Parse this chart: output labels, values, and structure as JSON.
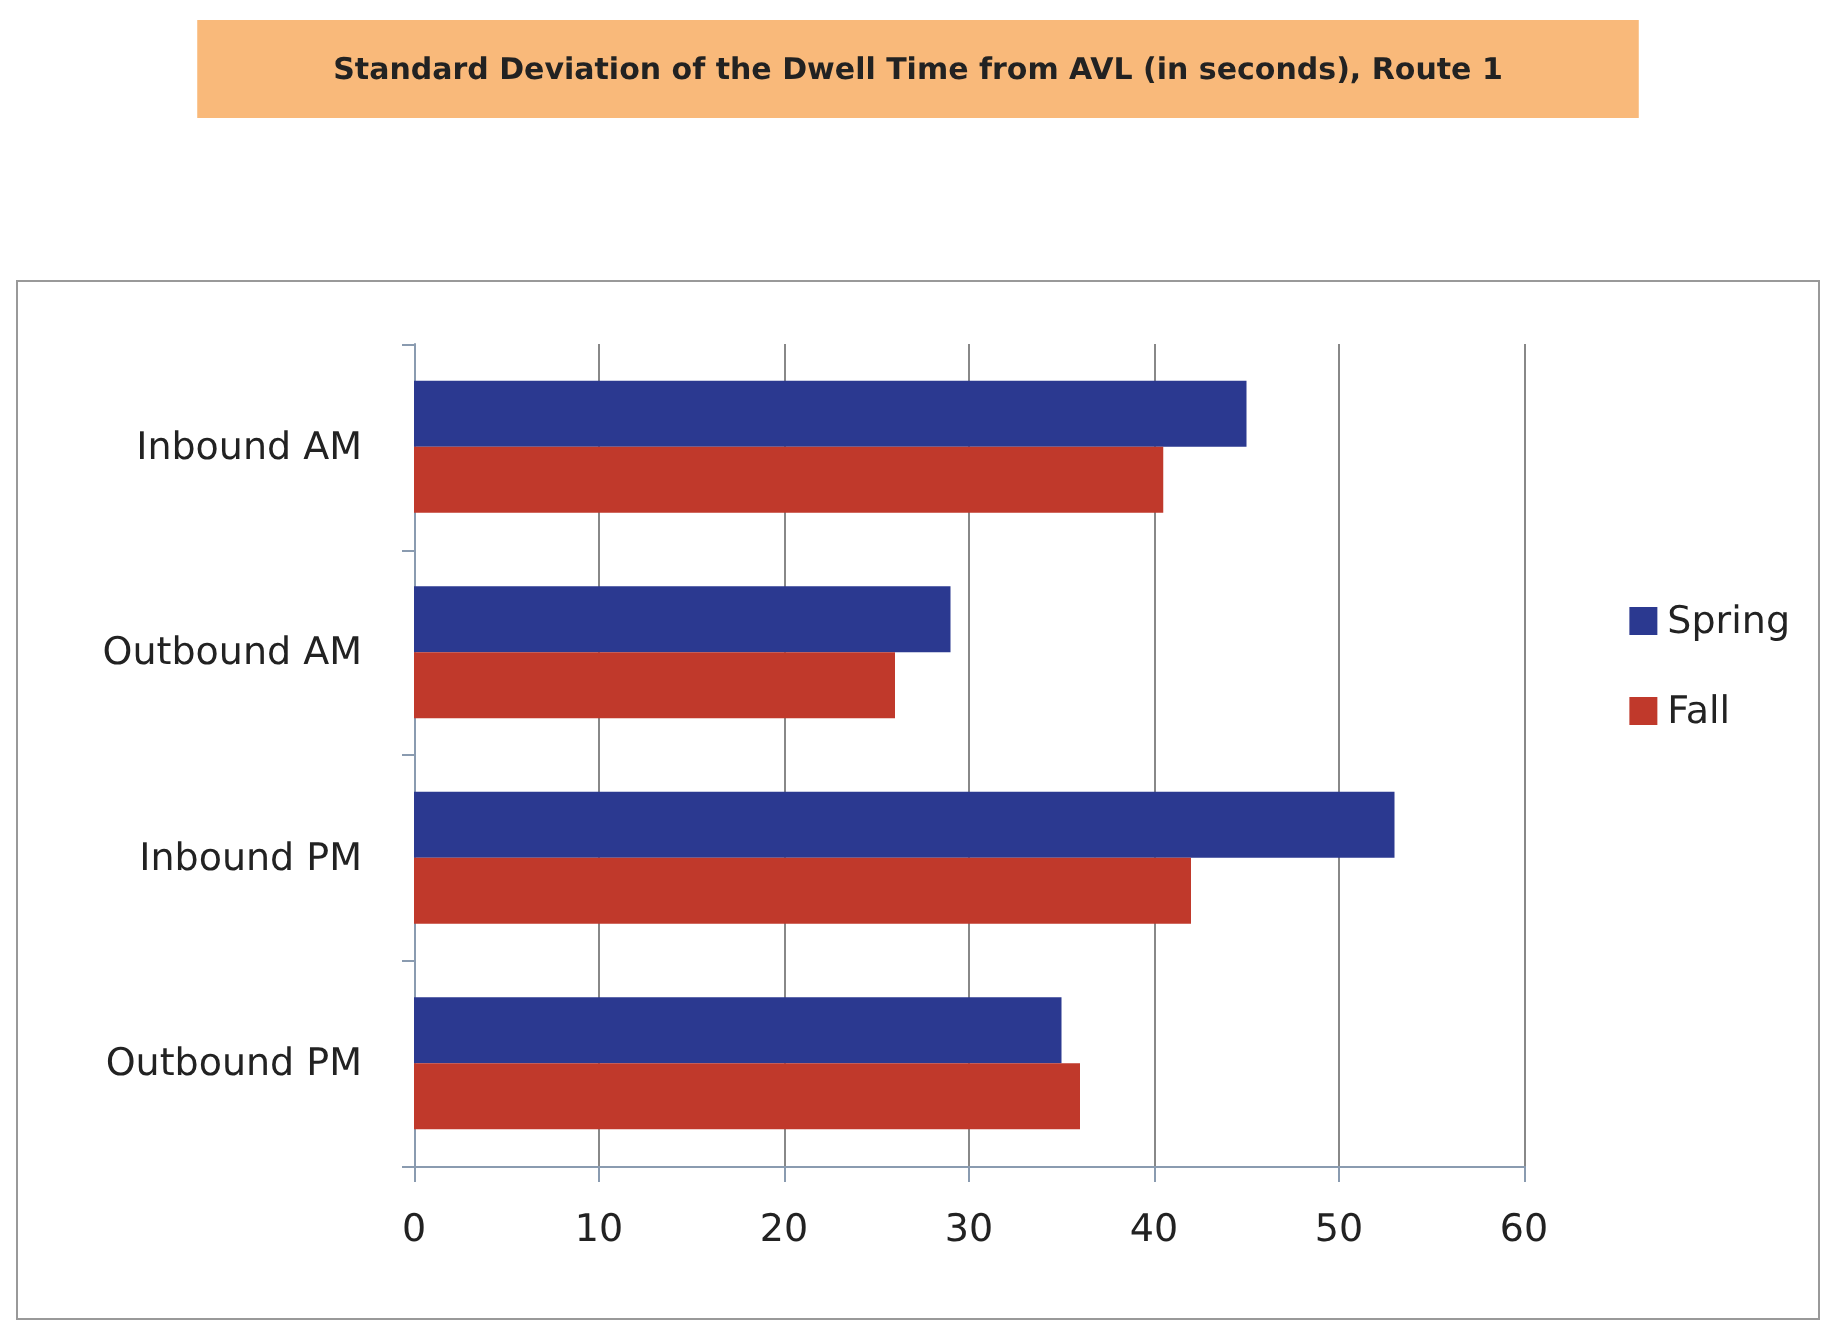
{
  "chart_data": {
    "type": "bar",
    "orientation": "horizontal",
    "title": "Standard Deviation of the Dwell Time from AVL (in seconds), Route 1",
    "categories": [
      "Inbound AM",
      "Outbound AM",
      "Inbound PM",
      "Outbound PM"
    ],
    "series": [
      {
        "name": "Spring",
        "color": "#2b3990",
        "values": [
          45,
          29,
          53,
          35
        ]
      },
      {
        "name": "Fall",
        "color": "#c0392b",
        "values": [
          40.5,
          26,
          42,
          36
        ]
      }
    ],
    "xlim": [
      0,
      60
    ],
    "xticks": [
      0,
      10,
      20,
      30,
      40,
      50,
      60
    ],
    "grid": "x",
    "legend": "right"
  }
}
